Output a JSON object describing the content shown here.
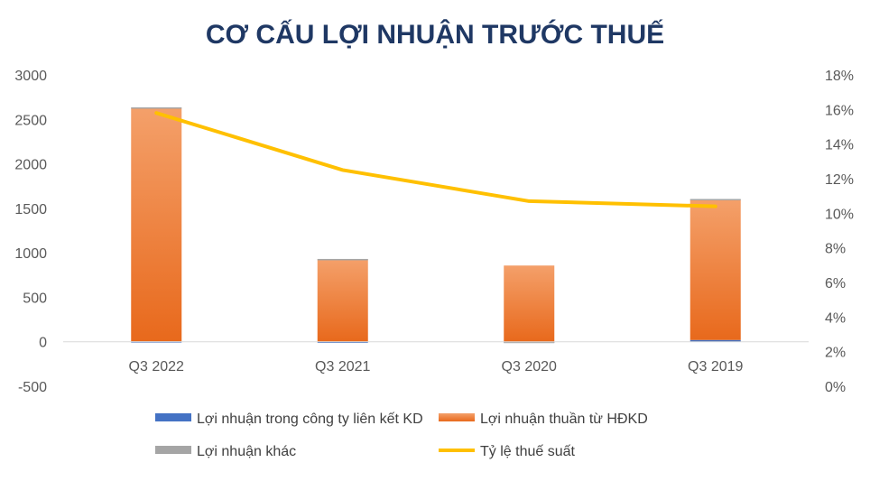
{
  "chart_data": {
    "type": "bar",
    "title": "CƠ CẤU LỢI NHUẬN TRƯỚC THUẾ",
    "categories": [
      "Q3 2022",
      "Q3 2021",
      "Q3 2020",
      "Q3 2019"
    ],
    "series": [
      {
        "name": "Lợi nhuận trong công ty liên kết KD",
        "type": "bar",
        "axis": "left",
        "color": "#4472C4",
        "values": [
          5,
          3,
          2,
          20
        ]
      },
      {
        "name": "Lợi nhuận thuần từ HĐKD",
        "type": "bar",
        "axis": "left",
        "color": "#ED7D31",
        "values": [
          2625,
          925,
          855,
          1580
        ]
      },
      {
        "name": "Lợi nhuận khác",
        "type": "bar",
        "axis": "left",
        "color": "#A5A5A5",
        "values": [
          5,
          3,
          -15,
          5
        ]
      },
      {
        "name": "Tỷ lệ thuế suất",
        "type": "line",
        "axis": "right",
        "color": "#FFC000",
        "values": [
          0.158,
          0.125,
          0.107,
          0.104
        ]
      }
    ],
    "y_left": {
      "min": -500,
      "max": 3000,
      "ticks": [
        "-500",
        "0",
        "500",
        "1000",
        "1500",
        "2000",
        "2500",
        "3000"
      ],
      "tick_values": [
        -500,
        0,
        500,
        1000,
        1500,
        2000,
        2500,
        3000
      ]
    },
    "y_right": {
      "min": 0,
      "max": 0.18,
      "ticks": [
        "0%",
        "2%",
        "4%",
        "6%",
        "8%",
        "10%",
        "12%",
        "14%",
        "16%",
        "18%"
      ],
      "tick_values": [
        0,
        0.02,
        0.04,
        0.06,
        0.08,
        0.1,
        0.12,
        0.14,
        0.16,
        0.18
      ]
    },
    "grid": false,
    "legend_position": "bottom"
  }
}
